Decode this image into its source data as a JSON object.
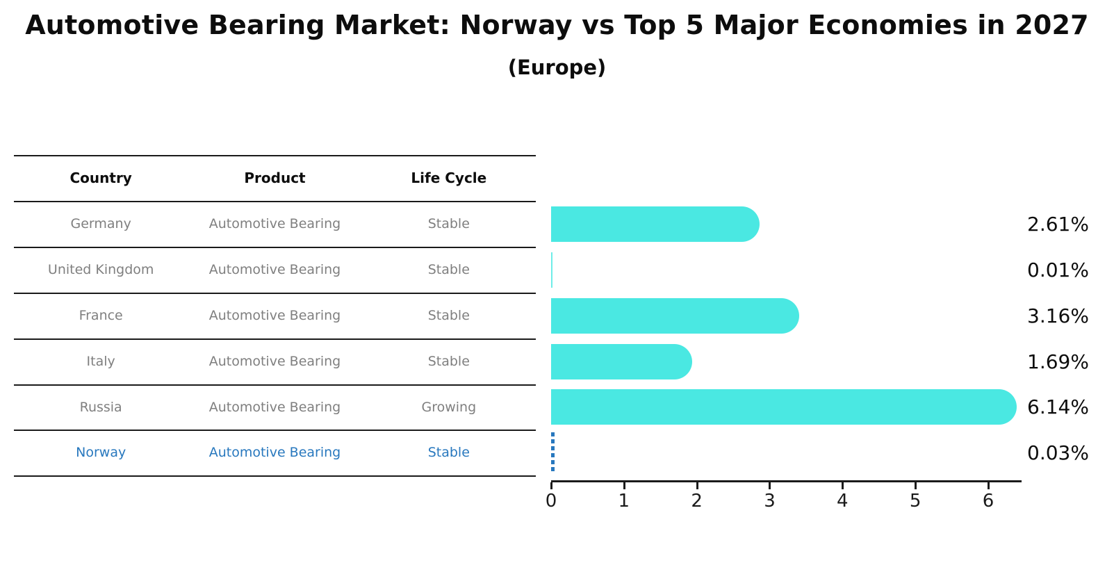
{
  "header": {
    "title": "Automotive Bearing Market: Norway vs Top 5 Major Economies in 2027",
    "subtitle": "(Europe)"
  },
  "table": {
    "headers": [
      "Country",
      "Product",
      "Life Cycle"
    ],
    "rows": [
      {
        "country": "Germany",
        "product": "Automotive Bearing",
        "life_cycle": "Stable",
        "highlight": false
      },
      {
        "country": "United Kingdom",
        "product": "Automotive Bearing",
        "life_cycle": "Stable",
        "highlight": false
      },
      {
        "country": "France",
        "product": "Automotive Bearing",
        "life_cycle": "Stable",
        "highlight": false
      },
      {
        "country": "Italy",
        "product": "Automotive Bearing",
        "life_cycle": "Stable",
        "highlight": false
      },
      {
        "country": "Russia",
        "product": "Automotive Bearing",
        "life_cycle": "Growing",
        "highlight": false
      },
      {
        "country": "Norway",
        "product": "Automotive Bearing",
        "life_cycle": "Stable",
        "highlight": true
      }
    ]
  },
  "chart_data": {
    "type": "bar",
    "orientation": "horizontal",
    "title": "Automotive Bearing Market: Norway vs Top 5 Major Economies in 2027",
    "subtitle": "(Europe)",
    "categories": [
      "Germany",
      "United Kingdom",
      "France",
      "Italy",
      "Russia",
      "Norway"
    ],
    "values": [
      2.61,
      0.01,
      3.16,
      1.69,
      6.14,
      0.03
    ],
    "value_labels": [
      "2.61%",
      "0.01%",
      "3.16%",
      "1.69%",
      "6.14%",
      "0.03%"
    ],
    "xticks": [
      0,
      1,
      2,
      3,
      4,
      5,
      6
    ],
    "xlim": [
      0,
      6.46
    ],
    "xlabel": "",
    "ylabel": "",
    "grid": false,
    "legend": false,
    "highlight_index": 5,
    "bar_style": "rounded-right-cap",
    "highlight_style": "dashed-vertical-line"
  },
  "colors": {
    "bar": "#4ae8e2",
    "highlight_blue": "#2878be",
    "row_text": "#7f7f7f",
    "axis": "#1a1a1a",
    "title_text": "#0d0d0d"
  }
}
